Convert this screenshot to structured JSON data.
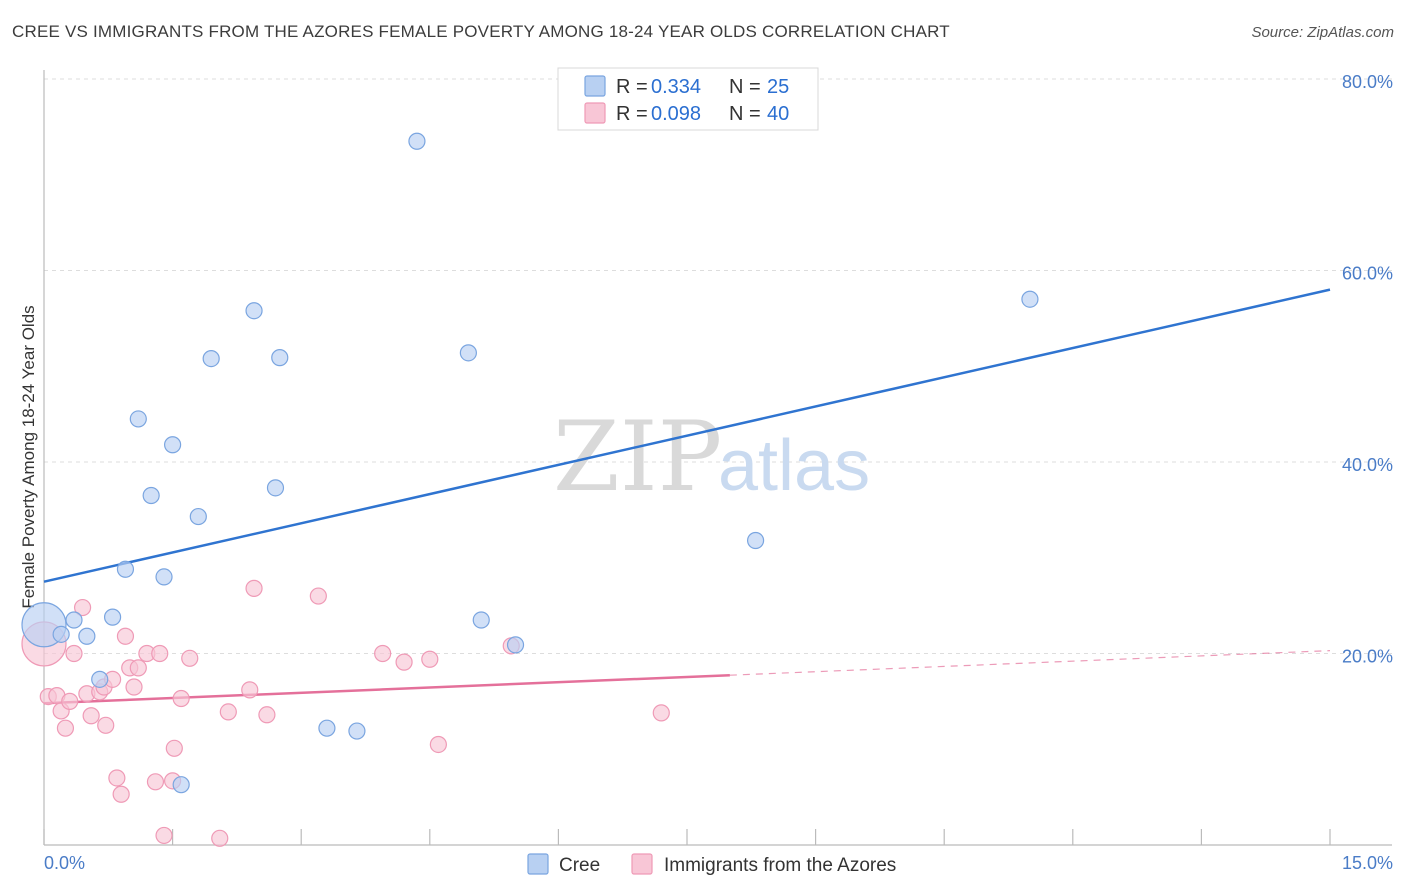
{
  "header": {
    "title": "CREE VS IMMIGRANTS FROM THE AZORES FEMALE POVERTY AMONG 18-24 YEAR OLDS CORRELATION CHART",
    "source": "Source: ZipAtlas.com"
  },
  "watermark": {
    "part1": "ZIP",
    "part2": "atlas"
  },
  "legend_top": {
    "rows": [
      {
        "r_label": "R =",
        "r_value": "0.334",
        "n_label": "N =",
        "n_value": "25"
      },
      {
        "r_label": "R =",
        "r_value": "0.098",
        "n_label": "N =",
        "n_value": "40"
      }
    ]
  },
  "legend_bottom": {
    "items": [
      {
        "label": "Cree"
      },
      {
        "label": "Immigrants from the Azores"
      }
    ]
  },
  "colors": {
    "cree_fill": "#b8d0f2",
    "cree_stroke": "#7aa5e0",
    "cree_line": "#2f74d0",
    "azores_fill": "#f8c6d6",
    "azores_stroke": "#ef9ab6",
    "azores_line": "#e4709a",
    "grid": "#dddddd",
    "axis_text": "#4a7cc7"
  },
  "chart_data": {
    "type": "scatter",
    "title": "CREE VS IMMIGRANTS FROM THE AZORES FEMALE POVERTY AMONG 18-24 YEAR OLDS CORRELATION CHART",
    "xlabel": "",
    "ylabel": "Female Poverty Among 18-24 Year Olds",
    "xlim": [
      0,
      15
    ],
    "ylim": [
      0,
      80
    ],
    "x_tick_labels": [
      "0.0%",
      "15.0%"
    ],
    "y_ticks": [
      20,
      40,
      60,
      80
    ],
    "y_tick_labels": [
      "20.0%",
      "40.0%",
      "60.0%",
      "80.0%"
    ],
    "grid": true,
    "series": [
      {
        "name": "Cree",
        "R": 0.334,
        "N": 25,
        "trend": {
          "x": [
            0,
            15
          ],
          "y": [
            27.5,
            58.0
          ],
          "dashed_from": null
        },
        "points": [
          {
            "x": 0.0,
            "y": 23.0,
            "big": true
          },
          {
            "x": 0.2,
            "y": 22.0
          },
          {
            "x": 0.35,
            "y": 23.5
          },
          {
            "x": 0.5,
            "y": 21.8
          },
          {
            "x": 0.65,
            "y": 17.3
          },
          {
            "x": 0.8,
            "y": 23.8
          },
          {
            "x": 0.95,
            "y": 28.8
          },
          {
            "x": 1.1,
            "y": 44.5
          },
          {
            "x": 1.25,
            "y": 36.5
          },
          {
            "x": 1.4,
            "y": 28.0
          },
          {
            "x": 1.5,
            "y": 41.8
          },
          {
            "x": 1.6,
            "y": 6.3
          },
          {
            "x": 1.8,
            "y": 34.3
          },
          {
            "x": 1.95,
            "y": 50.8
          },
          {
            "x": 2.45,
            "y": 55.8
          },
          {
            "x": 2.7,
            "y": 37.3
          },
          {
            "x": 2.75,
            "y": 50.9
          },
          {
            "x": 3.3,
            "y": 12.2
          },
          {
            "x": 3.65,
            "y": 11.9
          },
          {
            "x": 4.35,
            "y": 73.5
          },
          {
            "x": 4.95,
            "y": 51.4
          },
          {
            "x": 5.1,
            "y": 23.5
          },
          {
            "x": 5.5,
            "y": 20.9
          },
          {
            "x": 8.3,
            "y": 31.8
          },
          {
            "x": 11.5,
            "y": 57.0
          }
        ]
      },
      {
        "name": "Immigrants from the Azores",
        "R": 0.098,
        "N": 40,
        "trend": {
          "x": [
            0,
            15
          ],
          "y": [
            14.8,
            20.3
          ],
          "dashed_from": 8.0
        },
        "points": [
          {
            "x": 0.0,
            "y": 21.0,
            "big": true
          },
          {
            "x": 0.05,
            "y": 15.5
          },
          {
            "x": 0.15,
            "y": 15.6
          },
          {
            "x": 0.2,
            "y": 14.0
          },
          {
            "x": 0.25,
            "y": 12.2
          },
          {
            "x": 0.3,
            "y": 15.0
          },
          {
            "x": 0.35,
            "y": 20.0
          },
          {
            "x": 0.45,
            "y": 24.8
          },
          {
            "x": 0.5,
            "y": 15.8
          },
          {
            "x": 0.55,
            "y": 13.5
          },
          {
            "x": 0.65,
            "y": 16.0
          },
          {
            "x": 0.7,
            "y": 16.5
          },
          {
            "x": 0.72,
            "y": 12.5
          },
          {
            "x": 0.8,
            "y": 17.3
          },
          {
            "x": 0.85,
            "y": 7.0
          },
          {
            "x": 0.9,
            "y": 5.3
          },
          {
            "x": 0.95,
            "y": 21.8
          },
          {
            "x": 1.0,
            "y": 18.5
          },
          {
            "x": 1.05,
            "y": 16.5
          },
          {
            "x": 1.1,
            "y": 18.5
          },
          {
            "x": 1.2,
            "y": 20.0
          },
          {
            "x": 1.3,
            "y": 6.6
          },
          {
            "x": 1.35,
            "y": 20.0
          },
          {
            "x": 1.4,
            "y": 1.0
          },
          {
            "x": 1.5,
            "y": 6.7
          },
          {
            "x": 1.52,
            "y": 10.1
          },
          {
            "x": 1.6,
            "y": 15.3
          },
          {
            "x": 1.7,
            "y": 19.5
          },
          {
            "x": 2.05,
            "y": 0.7
          },
          {
            "x": 2.15,
            "y": 13.9
          },
          {
            "x": 2.4,
            "y": 16.2
          },
          {
            "x": 2.45,
            "y": 26.8
          },
          {
            "x": 2.6,
            "y": 13.6
          },
          {
            "x": 3.2,
            "y": 26.0
          },
          {
            "x": 3.95,
            "y": 20.0
          },
          {
            "x": 4.2,
            "y": 19.1
          },
          {
            "x": 4.5,
            "y": 19.4
          },
          {
            "x": 4.6,
            "y": 10.5
          },
          {
            "x": 5.45,
            "y": 20.8
          },
          {
            "x": 7.2,
            "y": 13.8
          }
        ]
      }
    ]
  }
}
